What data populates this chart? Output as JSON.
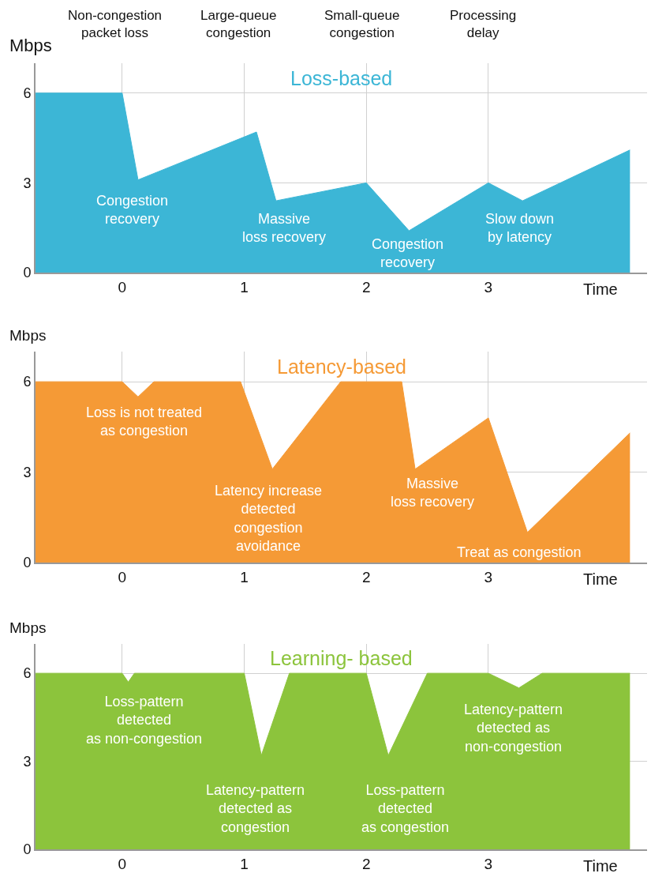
{
  "chart_data": [
    {
      "type": "area",
      "title": "Loss-based",
      "xlabel": "Time",
      "ylabel": "Mbps",
      "xlim": [
        -0.71,
        4.3
      ],
      "ylim": [
        0,
        7
      ],
      "xticks": [
        0,
        1,
        2,
        3
      ],
      "yticks": [
        0,
        3,
        6
      ],
      "grid": true,
      "series": [
        {
          "color": "#3cb6d6",
          "x": [
            -0.71,
            0,
            0.13,
            1.1,
            1.26,
            2,
            2.35,
            3,
            3.28,
            4.16
          ],
          "values": [
            6,
            6,
            3.1,
            4.7,
            2.4,
            3,
            1.4,
            3,
            2.4,
            4.1
          ]
        }
      ],
      "annotations": [
        "Non-congestion\npacket loss",
        "Large-queue\ncongestion",
        "Small-queue\ncongestion",
        "Processing\ndelay",
        "Congestion\nrecovery",
        "Massive\nloss recovery",
        "Congestion\nrecovery",
        "Slow down\nby latency"
      ]
    },
    {
      "type": "area",
      "title": "Latency-based",
      "xlabel": "Time",
      "ylabel": "Mbps",
      "xlim": [
        -0.71,
        4.3
      ],
      "ylim": [
        0,
        7
      ],
      "xticks": [
        0,
        1,
        2,
        3
      ],
      "yticks": [
        0,
        3,
        6
      ],
      "grid": true,
      "series": [
        {
          "color": "#f59a36",
          "x": [
            -0.71,
            0,
            0.13,
            0.26,
            0.97,
            1.23,
            1.79,
            2.29,
            2.4,
            3,
            3.32,
            4.16
          ],
          "values": [
            6,
            6,
            5.5,
            6,
            6,
            3.1,
            6,
            6,
            3.1,
            4.8,
            1,
            4.3
          ]
        }
      ],
      "annotations": [
        "Loss is not treated\nas congestion",
        "Latency increase\ndetected\ncongestion\navoidance",
        "Massive\nloss recovery",
        "Treat as congestion"
      ]
    },
    {
      "type": "area",
      "title": "Learning- based",
      "xlabel": "Time",
      "ylabel": "Mbps",
      "xlim": [
        -0.71,
        4.3
      ],
      "ylim": [
        0,
        7
      ],
      "xticks": [
        0,
        1,
        2,
        3
      ],
      "yticks": [
        0,
        3,
        6
      ],
      "grid": true,
      "series": [
        {
          "color": "#8cc43c",
          "x": [
            -0.71,
            0,
            0.05,
            0.1,
            1,
            1.14,
            1.37,
            2,
            2.18,
            2.5,
            3,
            3.25,
            3.44,
            4.16
          ],
          "values": [
            6,
            6,
            5.7,
            6,
            6,
            3.2,
            6,
            6,
            3.2,
            6,
            6,
            5.5,
            6,
            6
          ]
        }
      ],
      "annotations": [
        "Loss-pattern\ndetected\nas non-congestion",
        "Latency-pattern\ndetected as\ncongestion",
        "Loss-pattern\ndetected\nas congestion",
        "Latency-pattern\ndetected as\nnon-congestion"
      ]
    }
  ]
}
